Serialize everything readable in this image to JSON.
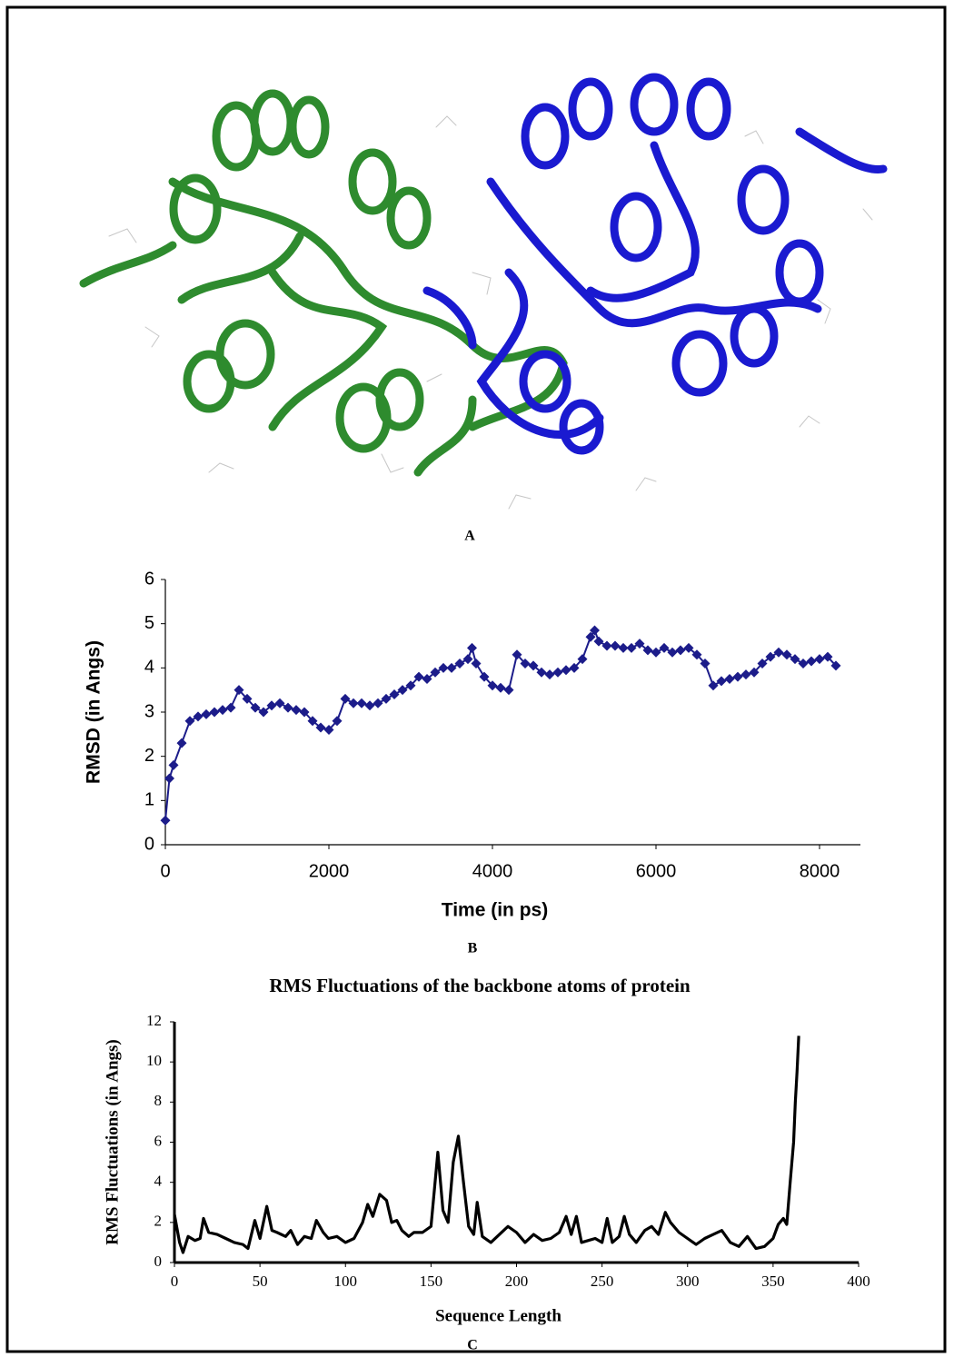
{
  "figure_a": {
    "label": "A"
  },
  "chart_data": [
    {
      "type": "line",
      "marker": "diamond",
      "color": "#1c1c8a",
      "panel_label": "B",
      "x_label": "Time (in ps)",
      "y_label": "RMSD (in Angs)",
      "x": [
        0,
        50,
        100,
        200,
        300,
        400,
        500,
        600,
        700,
        800,
        900,
        1000,
        1100,
        1200,
        1300,
        1400,
        1500,
        1600,
        1700,
        1800,
        1900,
        2000,
        2100,
        2200,
        2300,
        2400,
        2500,
        2600,
        2700,
        2800,
        2900,
        3000,
        3100,
        3200,
        3300,
        3400,
        3500,
        3600,
        3700,
        3750,
        3800,
        3900,
        4000,
        4100,
        4200,
        4300,
        4400,
        4500,
        4600,
        4700,
        4800,
        4900,
        5000,
        5100,
        5200,
        5250,
        5300,
        5400,
        5500,
        5600,
        5700,
        5800,
        5900,
        6000,
        6100,
        6200,
        6300,
        6400,
        6500,
        6600,
        6700,
        6800,
        6900,
        7000,
        7100,
        7200,
        7300,
        7400,
        7500,
        7600,
        7700,
        7800,
        7900,
        8000,
        8100,
        8200
      ],
      "values": [
        0.55,
        1.5,
        1.8,
        2.3,
        2.8,
        2.9,
        2.95,
        3.0,
        3.05,
        3.1,
        3.5,
        3.3,
        3.1,
        3.0,
        3.15,
        3.2,
        3.1,
        3.05,
        3.0,
        2.8,
        2.65,
        2.6,
        2.8,
        3.3,
        3.2,
        3.2,
        3.15,
        3.2,
        3.3,
        3.4,
        3.5,
        3.6,
        3.8,
        3.75,
        3.9,
        4.0,
        4.0,
        4.1,
        4.2,
        4.45,
        4.1,
        3.8,
        3.6,
        3.55,
        3.5,
        4.3,
        4.1,
        4.05,
        3.9,
        3.85,
        3.9,
        3.95,
        4.0,
        4.2,
        4.7,
        4.85,
        4.6,
        4.5,
        4.5,
        4.45,
        4.45,
        4.55,
        4.4,
        4.35,
        4.45,
        4.35,
        4.4,
        4.45,
        4.3,
        4.1,
        3.6,
        3.7,
        3.75,
        3.8,
        3.85,
        3.9,
        4.1,
        4.25,
        4.35,
        4.3,
        4.2,
        4.1,
        4.15,
        4.2,
        4.25,
        4.05
      ],
      "xlim": [
        0,
        8500
      ],
      "ylim": [
        0,
        6
      ],
      "xticks": [
        0,
        2000,
        4000,
        6000,
        8000
      ],
      "yticks": [
        0,
        1,
        2,
        3,
        4,
        5,
        6
      ]
    },
    {
      "type": "line",
      "color": "#000000",
      "panel_label": "C",
      "title": "RMS Fluctuations of the backbone atoms of protein",
      "x_label": "Sequence Length",
      "y_label": "RMS Fluctuations (in Angs)",
      "x": [
        0,
        3,
        5,
        8,
        12,
        15,
        17,
        20,
        25,
        30,
        35,
        40,
        43,
        47,
        50,
        54,
        57,
        60,
        65,
        68,
        72,
        76,
        80,
        83,
        87,
        90,
        95,
        100,
        105,
        110,
        113,
        116,
        120,
        124,
        127,
        130,
        133,
        137,
        140,
        145,
        150,
        154,
        157,
        160,
        163,
        166,
        169,
        172,
        175,
        177,
        180,
        185,
        190,
        195,
        200,
        205,
        210,
        215,
        220,
        225,
        229,
        232,
        235,
        238,
        242,
        246,
        250,
        253,
        256,
        260,
        263,
        266,
        270,
        275,
        279,
        283,
        287,
        290,
        295,
        300,
        305,
        310,
        315,
        320,
        325,
        330,
        335,
        340,
        345,
        350,
        353,
        356,
        358,
        360,
        362,
        363,
        364,
        365
      ],
      "values": [
        2.4,
        1.0,
        0.5,
        1.3,
        1.1,
        1.2,
        2.2,
        1.5,
        1.4,
        1.2,
        1.0,
        0.9,
        0.7,
        2.1,
        1.2,
        2.8,
        1.6,
        1.5,
        1.3,
        1.6,
        0.9,
        1.3,
        1.2,
        2.1,
        1.5,
        1.2,
        1.3,
        1.0,
        1.2,
        2.0,
        2.9,
        2.3,
        3.4,
        3.1,
        2.0,
        2.1,
        1.6,
        1.3,
        1.5,
        1.5,
        1.8,
        5.5,
        2.6,
        2.0,
        5.0,
        6.3,
        4.0,
        1.8,
        1.4,
        3.0,
        1.3,
        1.0,
        1.4,
        1.8,
        1.5,
        1.0,
        1.4,
        1.1,
        1.2,
        1.5,
        2.3,
        1.4,
        2.3,
        1.0,
        1.1,
        1.2,
        1.0,
        2.2,
        1.0,
        1.3,
        2.3,
        1.4,
        1.0,
        1.6,
        1.8,
        1.4,
        2.5,
        2.0,
        1.5,
        1.2,
        0.9,
        1.2,
        1.4,
        1.6,
        1.0,
        0.8,
        1.3,
        0.7,
        0.8,
        1.2,
        1.9,
        2.2,
        1.9,
        4.0,
        6.0,
        8.0,
        9.5,
        11.3
      ],
      "xlim": [
        0,
        400
      ],
      "ylim": [
        0,
        12
      ],
      "xticks": [
        0,
        50,
        100,
        150,
        200,
        250,
        300,
        350,
        400
      ],
      "yticks": [
        0,
        2,
        4,
        6,
        8,
        10,
        12
      ]
    }
  ]
}
